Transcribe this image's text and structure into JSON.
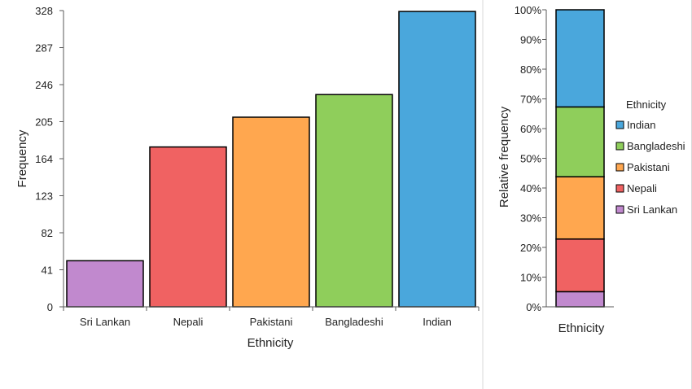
{
  "chart_data": [
    {
      "type": "bar",
      "categories": [
        "Sri Lankan",
        "Nepali",
        "Pakistani",
        "Bangladeshi",
        "Indian"
      ],
      "values": [
        51,
        177,
        210,
        235,
        327
      ],
      "colors": [
        "#c189ce",
        "#f06262",
        "#ffa74f",
        "#8fce5b",
        "#4aa7dc"
      ],
      "xlabel": "Ethnicity",
      "ylabel": "Frequency",
      "ylim": [
        0,
        328
      ],
      "yticks": [
        0,
        41,
        82,
        123,
        164,
        205,
        246,
        287,
        328
      ],
      "grid": false
    },
    {
      "type": "bar",
      "stacked": true,
      "categories": [
        "Ethnicity"
      ],
      "series": [
        {
          "name": "Sri Lankan",
          "values": [
            5.1
          ],
          "color": "#c189ce"
        },
        {
          "name": "Nepali",
          "values": [
            17.7
          ],
          "color": "#f06262"
        },
        {
          "name": "Pakistani",
          "values": [
            21.0
          ],
          "color": "#ffa74f"
        },
        {
          "name": "Bangladeshi",
          "values": [
            23.5
          ],
          "color": "#8fce5b"
        },
        {
          "name": "Indian",
          "values": [
            32.7
          ],
          "color": "#4aa7dc"
        }
      ],
      "xlabel": "Ethnicity",
      "ylabel": "Relative frequency",
      "ylim": [
        0,
        100
      ],
      "yticks": [
        "0%",
        "10%",
        "20%",
        "30%",
        "40%",
        "50%",
        "60%",
        "70%",
        "80%",
        "90%",
        "100%"
      ],
      "legend": {
        "title": "Ethnicity",
        "placement": "right",
        "items": [
          "Indian",
          "Bangladeshi",
          "Pakistani",
          "Nepali",
          "Sri Lankan"
        ]
      },
      "grid": false
    }
  ]
}
